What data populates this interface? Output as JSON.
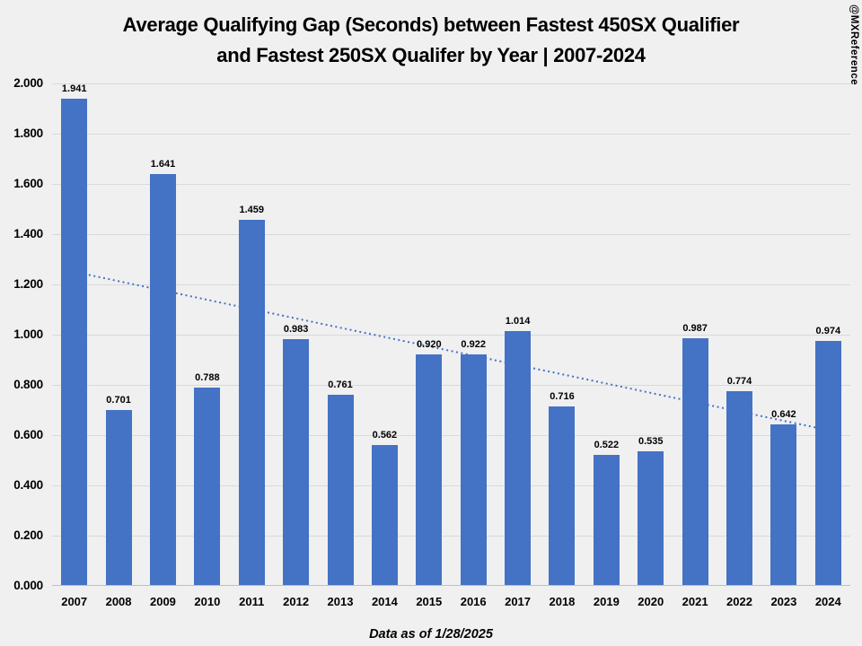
{
  "title": {
    "line1": "Average Qualifying Gap (Seconds) between Fastest 450SX Qualifier",
    "line2": "and Fastest 250SX Qualifer by Year | 2007-2024"
  },
  "watermark": "@MXReference",
  "footer": "Data as of 1/28/2025",
  "colors": {
    "bar": "#4472C4",
    "trendline": "#4472C4",
    "background": "#F0F0F0",
    "gridline": "#D9D9D9",
    "axis_line": "#C0C0C0",
    "text": "#000000"
  },
  "chart_data": {
    "type": "bar",
    "title": "Average Qualifying Gap (Seconds) between Fastest 450SX Qualifier and Fastest 250SX Qualifer by Year | 2007-2024",
    "categories": [
      "2007",
      "2008",
      "2009",
      "2010",
      "2011",
      "2012",
      "2013",
      "2014",
      "2015",
      "2016",
      "2017",
      "2018",
      "2019",
      "2020",
      "2021",
      "2022",
      "2023",
      "2024"
    ],
    "values": [
      1.941,
      0.701,
      1.641,
      0.788,
      1.459,
      0.983,
      0.761,
      0.562,
      0.92,
      0.922,
      1.014,
      0.716,
      0.522,
      0.535,
      0.987,
      0.774,
      0.642,
      0.974
    ],
    "data_labels": [
      "1.941",
      "0.701",
      "1.641",
      "0.788",
      "1.459",
      "0.983",
      "0.761",
      "0.562",
      "0.920",
      "0.922",
      "1.014",
      "0.716",
      "0.522",
      "0.535",
      "0.987",
      "0.774",
      "0.642",
      "0.974"
    ],
    "yticks": [
      "0.000",
      "0.200",
      "0.400",
      "0.600",
      "0.800",
      "1.000",
      "1.200",
      "1.400",
      "1.600",
      "1.800",
      "2.000"
    ],
    "ylim": [
      0,
      2.0
    ],
    "ytick_step": 0.2,
    "xlabel": "",
    "ylabel": "",
    "grid": true,
    "legend": false,
    "trendline": {
      "type": "linear",
      "style": "dotted",
      "start_value": 1.25,
      "end_value": 0.62
    },
    "annotation": "Data as of 1/28/2025"
  }
}
